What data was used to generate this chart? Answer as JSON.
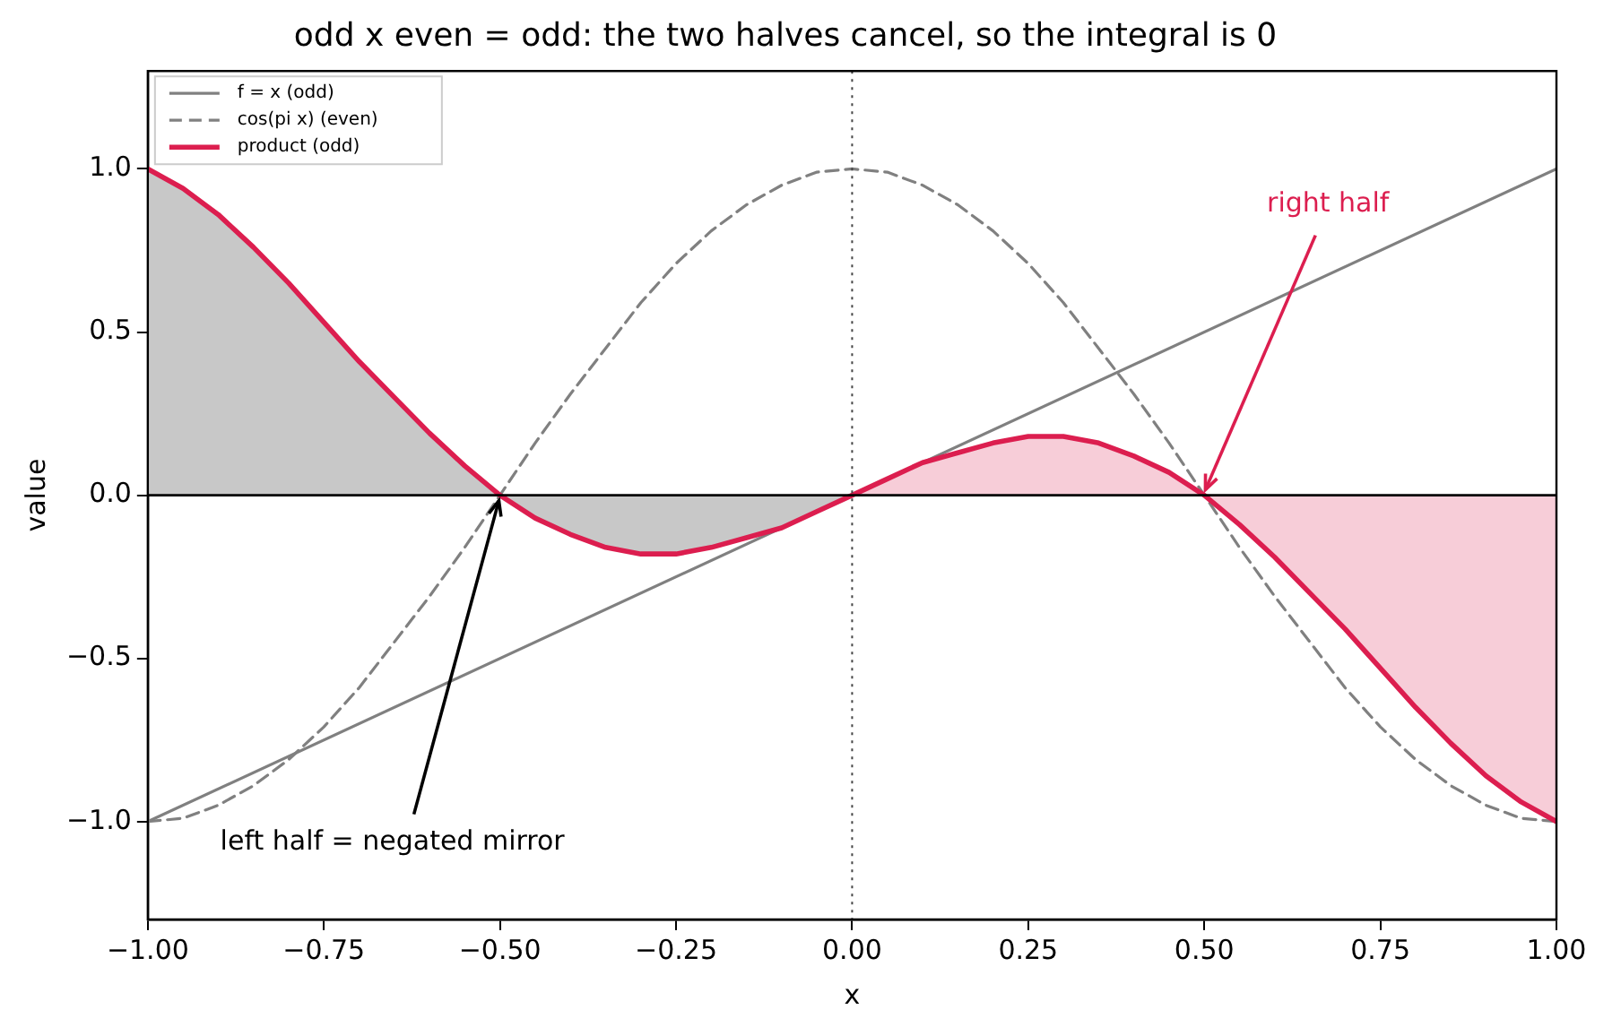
{
  "chart_data": {
    "type": "line",
    "title": "odd x even = odd: the two halves cancel, so the integral is 0",
    "xlabel": "x",
    "ylabel": "value",
    "xlim": [
      -1,
      1
    ],
    "xticks": [
      {
        "value": -1,
        "label": "−1.00"
      },
      {
        "value": -0.75,
        "label": "−0.75"
      },
      {
        "value": -0.5,
        "label": "−0.50"
      },
      {
        "value": -0.25,
        "label": "−0.25"
      },
      {
        "value": 0,
        "label": "0.00"
      },
      {
        "value": 0.25,
        "label": "0.25"
      },
      {
        "value": 0.5,
        "label": "0.50"
      },
      {
        "value": 0.75,
        "label": "0.75"
      },
      {
        "value": 1,
        "label": "1.00"
      }
    ],
    "ylim": [
      -1.3,
      1.3
    ],
    "yticks": [
      {
        "value": -1,
        "label": "−1.0"
      },
      {
        "value": -0.5,
        "label": "−0.5"
      },
      {
        "value": 0,
        "label": "0.0"
      },
      {
        "value": 0.5,
        "label": "0.5"
      },
      {
        "value": 1,
        "label": "1.0"
      }
    ],
    "grid": false,
    "legend": "top left",
    "marker": "none",
    "x": [
      -1,
      -0.95,
      -0.9,
      -0.85,
      -0.8,
      -0.75,
      -0.7,
      -0.65,
      -0.6,
      -0.55,
      -0.5,
      -0.45,
      -0.4,
      -0.35,
      -0.3,
      -0.25,
      -0.2,
      -0.15,
      -0.1,
      -0.05,
      0,
      0.05,
      0.1,
      0.15,
      0.2,
      0.25,
      0.3,
      0.35,
      0.4,
      0.45,
      0.5,
      0.55,
      0.6,
      0.65,
      0.7,
      0.75,
      0.8,
      0.85,
      0.9,
      0.95,
      1
    ],
    "series": [
      {
        "type": "area",
        "color": "#c8c8c8",
        "x": [
          -1,
          -0.95,
          -0.9,
          -0.85,
          -0.8,
          -0.75,
          -0.7,
          -0.65,
          -0.6,
          -0.55,
          -0.5,
          -0.45,
          -0.4,
          -0.35,
          -0.3,
          -0.25,
          -0.2,
          -0.15,
          -0.1,
          -0.05,
          0
        ],
        "values": [
          1,
          0.94,
          0.86,
          0.76,
          0.65,
          0.53,
          0.41,
          0.3,
          0.19,
          0.09,
          0,
          -0.07,
          -0.12,
          -0.16,
          -0.18,
          -0.18,
          -0.16,
          -0.13,
          -0.1,
          -0.05,
          0
        ]
      },
      {
        "type": "area",
        "color": "#f7cdd8",
        "x": [
          0,
          0.05,
          0.1,
          0.15,
          0.2,
          0.25,
          0.3,
          0.35,
          0.4,
          0.45,
          0.5,
          0.55,
          0.6,
          0.65,
          0.7,
          0.75,
          0.8,
          0.85,
          0.9,
          0.95,
          1
        ],
        "values": [
          0,
          0.05,
          0.1,
          0.13,
          0.16,
          0.18,
          0.18,
          0.16,
          0.12,
          0.07,
          0,
          -0.09,
          -0.19,
          -0.3,
          -0.41,
          -0.53,
          -0.65,
          -0.76,
          -0.86,
          -0.94,
          -1
        ]
      },
      {
        "name": "f = x (odd)",
        "color": "#808080",
        "line_style": "solid",
        "x": [
          -1,
          1
        ],
        "values": [
          -1,
          1
        ]
      },
      {
        "name": "cos(pi x) (even)",
        "color": "#808080",
        "line_style": "dashed",
        "values": [
          -1,
          -0.99,
          -0.95,
          -0.89,
          -0.81,
          -0.71,
          -0.59,
          -0.45,
          -0.31,
          -0.16,
          0,
          0.16,
          0.31,
          0.45,
          0.59,
          0.71,
          0.81,
          0.89,
          0.95,
          0.99,
          1,
          0.99,
          0.95,
          0.89,
          0.81,
          0.71,
          0.59,
          0.45,
          0.31,
          0.16,
          0,
          -0.16,
          -0.31,
          -0.45,
          -0.59,
          -0.71,
          -0.81,
          -0.89,
          -0.95,
          -0.99,
          -1
        ]
      },
      {
        "name": "product (odd)",
        "color": "#dc1e4f",
        "line_style": "solid",
        "values": [
          1,
          0.94,
          0.86,
          0.76,
          0.65,
          0.53,
          0.41,
          0.3,
          0.19,
          0.09,
          0,
          -0.07,
          -0.12,
          -0.16,
          -0.18,
          -0.18,
          -0.16,
          -0.13,
          -0.1,
          -0.05,
          0,
          0.05,
          0.1,
          0.13,
          0.16,
          0.18,
          0.18,
          0.16,
          0.12,
          0.07,
          0,
          -0.09,
          -0.19,
          -0.3,
          -0.41,
          -0.53,
          -0.65,
          -0.76,
          -0.86,
          -0.94,
          -1
        ]
      }
    ],
    "ref_lines": [
      {
        "axis": "y",
        "value": 0,
        "color": "#000000",
        "line_style": "solid"
      },
      {
        "axis": "x",
        "value": 0,
        "color": "#444444",
        "line_style": "dotted"
      }
    ],
    "annotations": [
      {
        "text": "right half",
        "x": 0.5,
        "y": 0
      },
      {
        "text": "left half = negated mirror",
        "x": -0.5,
        "y": 0
      }
    ]
  }
}
